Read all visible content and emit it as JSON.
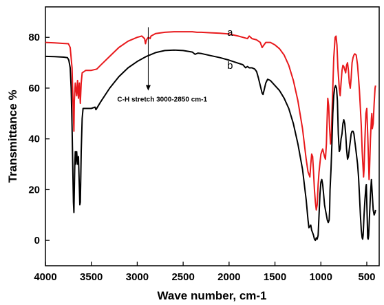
{
  "chart_data": {
    "type": "line",
    "xlabel": "Wave number, cm-1",
    "ylabel": "Transmittance %",
    "xlim": [
      4000,
      400
    ],
    "ylim": [
      -10,
      92
    ],
    "x_reversed": true,
    "x_ticks": [
      4000,
      3500,
      3000,
      2500,
      2000,
      1500,
      1000,
      500
    ],
    "y_ticks": [
      0,
      20,
      40,
      60,
      80
    ],
    "annotation": {
      "text": "C-H stretch 3000-2850 cm-1",
      "x": 2880,
      "y_from": 84,
      "y_to": 59
    },
    "colors": {
      "a": "#e8191c",
      "b": "#000000"
    },
    "series": [
      {
        "name": "a",
        "label": "a",
        "label_pos": [
          2020,
          82
        ],
        "points": [
          [
            4000,
            78
          ],
          [
            3900,
            77.8
          ],
          [
            3800,
            77.6
          ],
          [
            3750,
            77.5
          ],
          [
            3730,
            76
          ],
          [
            3710,
            68
          ],
          [
            3700,
            55
          ],
          [
            3690,
            43
          ],
          [
            3685,
            55
          ],
          [
            3675,
            62
          ],
          [
            3660,
            57
          ],
          [
            3650,
            63
          ],
          [
            3640,
            56
          ],
          [
            3630,
            62
          ],
          [
            3620,
            54
          ],
          [
            3610,
            62
          ],
          [
            3600,
            66
          ],
          [
            3560,
            67
          ],
          [
            3500,
            67
          ],
          [
            3440,
            67.5
          ],
          [
            3400,
            69
          ],
          [
            3300,
            72.5
          ],
          [
            3200,
            76
          ],
          [
            3100,
            78.5
          ],
          [
            3000,
            80
          ],
          [
            2950,
            80.5
          ],
          [
            2920,
            79.5
          ],
          [
            2910,
            77.5
          ],
          [
            2900,
            79
          ],
          [
            2880,
            80
          ],
          [
            2860,
            79.5
          ],
          [
            2850,
            80.5
          ],
          [
            2800,
            81.5
          ],
          [
            2700,
            82
          ],
          [
            2600,
            82.2
          ],
          [
            2500,
            82.2
          ],
          [
            2400,
            82.2
          ],
          [
            2350,
            82
          ],
          [
            2300,
            82
          ],
          [
            2200,
            81.8
          ],
          [
            2100,
            81.6
          ],
          [
            2000,
            81.3
          ],
          [
            1900,
            80.5
          ],
          [
            1850,
            80
          ],
          [
            1800,
            79.5
          ],
          [
            1780,
            80.5
          ],
          [
            1750,
            79.5
          ],
          [
            1700,
            79
          ],
          [
            1660,
            78
          ],
          [
            1640,
            76
          ],
          [
            1630,
            76.5
          ],
          [
            1600,
            78
          ],
          [
            1550,
            78
          ],
          [
            1500,
            77
          ],
          [
            1450,
            75.5
          ],
          [
            1400,
            73
          ],
          [
            1350,
            69
          ],
          [
            1300,
            63
          ],
          [
            1250,
            55
          ],
          [
            1200,
            44
          ],
          [
            1160,
            32
          ],
          [
            1140,
            27
          ],
          [
            1120,
            25
          ],
          [
            1110,
            30
          ],
          [
            1100,
            34
          ],
          [
            1090,
            33
          ],
          [
            1080,
            27
          ],
          [
            1070,
            20
          ],
          [
            1060,
            15
          ],
          [
            1050,
            12
          ],
          [
            1040,
            14
          ],
          [
            1030,
            22
          ],
          [
            1020,
            27
          ],
          [
            1000,
            34
          ],
          [
            980,
            36
          ],
          [
            960,
            33
          ],
          [
            950,
            32
          ],
          [
            940,
            38
          ],
          [
            930,
            50
          ],
          [
            925,
            56
          ],
          [
            915,
            53
          ],
          [
            905,
            44
          ],
          [
            895,
            38
          ],
          [
            885,
            42
          ],
          [
            875,
            55
          ],
          [
            860,
            72
          ],
          [
            845,
            80
          ],
          [
            835,
            80.5
          ],
          [
            825,
            77
          ],
          [
            815,
            68
          ],
          [
            800,
            60
          ],
          [
            790,
            57
          ],
          [
            780,
            62
          ],
          [
            770,
            67
          ],
          [
            760,
            69
          ],
          [
            750,
            68.5
          ],
          [
            730,
            66
          ],
          [
            720,
            69
          ],
          [
            710,
            70
          ],
          [
            700,
            67
          ],
          [
            690,
            62
          ],
          [
            680,
            60
          ],
          [
            670,
            64
          ],
          [
            660,
            70
          ],
          [
            650,
            72
          ],
          [
            640,
            73
          ],
          [
            630,
            73.5
          ],
          [
            615,
            73
          ],
          [
            600,
            69
          ],
          [
            590,
            64
          ],
          [
            580,
            59
          ],
          [
            570,
            52
          ],
          [
            560,
            45
          ],
          [
            550,
            35
          ],
          [
            540,
            28
          ],
          [
            535,
            25
          ],
          [
            530,
            28
          ],
          [
            520,
            40
          ],
          [
            510,
            50
          ],
          [
            500,
            52
          ],
          [
            490,
            42
          ],
          [
            480,
            30
          ],
          [
            475,
            24
          ],
          [
            470,
            28
          ],
          [
            460,
            40
          ],
          [
            450,
            48
          ],
          [
            445,
            50
          ],
          [
            440,
            44
          ],
          [
            430,
            46
          ],
          [
            420,
            54
          ],
          [
            410,
            60
          ],
          [
            405,
            61
          ]
        ]
      },
      {
        "name": "b",
        "label": "b",
        "label_pos": [
          2020,
          69
        ],
        "points": [
          [
            4000,
            72.5
          ],
          [
            3900,
            72.4
          ],
          [
            3800,
            72.2
          ],
          [
            3760,
            72
          ],
          [
            3745,
            71
          ],
          [
            3730,
            68
          ],
          [
            3720,
            60
          ],
          [
            3710,
            45
          ],
          [
            3700,
            25
          ],
          [
            3695,
            15
          ],
          [
            3690,
            11
          ],
          [
            3685,
            20
          ],
          [
            3680,
            30
          ],
          [
            3675,
            35
          ],
          [
            3670,
            30
          ],
          [
            3660,
            35
          ],
          [
            3650,
            30
          ],
          [
            3640,
            33
          ],
          [
            3630,
            20
          ],
          [
            3625,
            14
          ],
          [
            3620,
            15
          ],
          [
            3615,
            25
          ],
          [
            3610,
            35
          ],
          [
            3600,
            48
          ],
          [
            3590,
            52
          ],
          [
            3550,
            52
          ],
          [
            3500,
            52
          ],
          [
            3460,
            52.5
          ],
          [
            3450,
            51.5
          ],
          [
            3400,
            54.5
          ],
          [
            3300,
            60
          ],
          [
            3200,
            64.5
          ],
          [
            3100,
            68
          ],
          [
            3000,
            70.5
          ],
          [
            2900,
            72.5
          ],
          [
            2800,
            74
          ],
          [
            2700,
            74.8
          ],
          [
            2600,
            75
          ],
          [
            2500,
            74.8
          ],
          [
            2400,
            74.2
          ],
          [
            2370,
            73.3
          ],
          [
            2340,
            73.8
          ],
          [
            2300,
            73.6
          ],
          [
            2200,
            72.8
          ],
          [
            2100,
            72
          ],
          [
            2000,
            71
          ],
          [
            1900,
            69.8
          ],
          [
            1850,
            69.2
          ],
          [
            1820,
            68
          ],
          [
            1800,
            68.5
          ],
          [
            1780,
            68
          ],
          [
            1750,
            68
          ],
          [
            1720,
            67.5
          ],
          [
            1700,
            66.5
          ],
          [
            1680,
            64
          ],
          [
            1660,
            61
          ],
          [
            1640,
            58
          ],
          [
            1630,
            57.5
          ],
          [
            1620,
            59
          ],
          [
            1600,
            62
          ],
          [
            1580,
            63.5
          ],
          [
            1550,
            63
          ],
          [
            1500,
            61
          ],
          [
            1450,
            59
          ],
          [
            1400,
            56
          ],
          [
            1350,
            52
          ],
          [
            1300,
            46
          ],
          [
            1250,
            38
          ],
          [
            1200,
            28
          ],
          [
            1160,
            16
          ],
          [
            1140,
            8
          ],
          [
            1130,
            5
          ],
          [
            1110,
            6
          ],
          [
            1100,
            4
          ],
          [
            1090,
            3
          ],
          [
            1080,
            2
          ],
          [
            1070,
            0.5
          ],
          [
            1060,
            0
          ],
          [
            1050,
            1
          ],
          [
            1040,
            0.5
          ],
          [
            1030,
            2
          ],
          [
            1020,
            10
          ],
          [
            1010,
            18
          ],
          [
            1000,
            23
          ],
          [
            990,
            24
          ],
          [
            980,
            22
          ],
          [
            970,
            18
          ],
          [
            960,
            14
          ],
          [
            950,
            12
          ],
          [
            940,
            10
          ],
          [
            930,
            8
          ],
          [
            920,
            7
          ],
          [
            910,
            8
          ],
          [
            905,
            12
          ],
          [
            900,
            20
          ],
          [
            890,
            28
          ],
          [
            880,
            38
          ],
          [
            870,
            50
          ],
          [
            860,
            57
          ],
          [
            850,
            60
          ],
          [
            840,
            61
          ],
          [
            830,
            60
          ],
          [
            820,
            55
          ],
          [
            810,
            42
          ],
          [
            800,
            35
          ],
          [
            790,
            36
          ],
          [
            780,
            40
          ],
          [
            770,
            42
          ],
          [
            760,
            46
          ],
          [
            750,
            47.5
          ],
          [
            740,
            46
          ],
          [
            730,
            42
          ],
          [
            720,
            36
          ],
          [
            710,
            32
          ],
          [
            700,
            33
          ],
          [
            690,
            36
          ],
          [
            680,
            39
          ],
          [
            670,
            42
          ],
          [
            660,
            43
          ],
          [
            650,
            43
          ],
          [
            640,
            42
          ],
          [
            630,
            39
          ],
          [
            620,
            36
          ],
          [
            610,
            33
          ],
          [
            600,
            30
          ],
          [
            590,
            25
          ],
          [
            580,
            18
          ],
          [
            570,
            10
          ],
          [
            560,
            4
          ],
          [
            550,
            1
          ],
          [
            545,
            0.5
          ],
          [
            540,
            2
          ],
          [
            530,
            10
          ],
          [
            520,
            16
          ],
          [
            510,
            21
          ],
          [
            505,
            22
          ],
          [
            500,
            15
          ],
          [
            495,
            8
          ],
          [
            490,
            1
          ],
          [
            485,
            0.5
          ],
          [
            480,
            2
          ],
          [
            470,
            10
          ],
          [
            460,
            18
          ],
          [
            450,
            24
          ],
          [
            440,
            18
          ],
          [
            430,
            12
          ],
          [
            420,
            10
          ],
          [
            410,
            11
          ],
          [
            405,
            12
          ]
        ]
      }
    ]
  }
}
